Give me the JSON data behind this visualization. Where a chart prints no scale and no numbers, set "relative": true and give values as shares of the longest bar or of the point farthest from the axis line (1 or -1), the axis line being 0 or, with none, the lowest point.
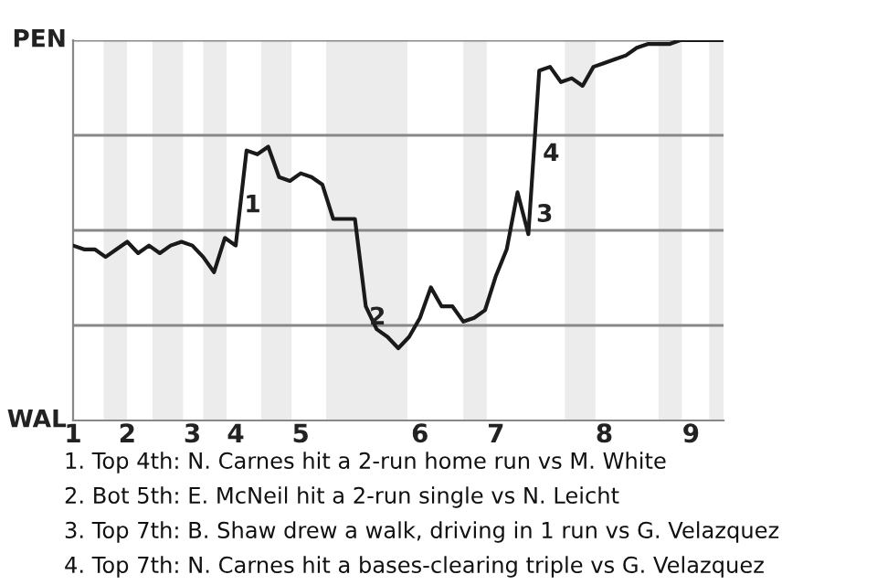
{
  "chart_data": {
    "type": "line",
    "relative": true,
    "categories": [
      "1",
      null,
      null,
      null,
      null,
      "2",
      null,
      null,
      null,
      null,
      null,
      "3",
      null,
      null,
      null,
      "4",
      null,
      null,
      null,
      null,
      null,
      "5",
      null,
      null,
      null,
      null,
      null,
      null,
      null,
      null,
      null,
      null,
      "6",
      null,
      null,
      null,
      null,
      null,
      null,
      "7",
      null,
      null,
      null,
      null,
      null,
      null,
      null,
      null,
      null,
      "8",
      null,
      null,
      null,
      null,
      null,
      null,
      null,
      "9",
      null,
      null,
      null
    ],
    "series": [
      {
        "color": "#1a1a1a",
        "values": [
          0.46,
          0.45,
          0.45,
          0.43,
          0.45,
          0.47,
          0.44,
          0.46,
          0.44,
          0.46,
          0.47,
          0.46,
          0.43,
          0.39,
          0.48,
          0.46,
          0.71,
          0.7,
          0.72,
          0.64,
          0.63,
          0.65,
          0.64,
          0.62,
          0.53,
          0.53,
          0.53,
          0.3,
          0.24,
          0.22,
          0.19,
          0.22,
          0.27,
          0.35,
          0.3,
          0.3,
          0.26,
          0.27,
          0.29,
          0.38,
          0.45,
          0.6,
          0.49,
          0.92,
          0.93,
          0.89,
          0.9,
          0.88,
          0.93,
          0.94,
          0.95,
          0.96,
          0.98,
          0.99,
          0.99,
          0.99,
          1.0,
          1.0,
          1.0,
          1.0,
          1.0
        ]
      }
    ],
    "grid": "y",
    "annotations": [
      "PEN",
      "WAL",
      "1",
      "2",
      "3",
      "4",
      "1. Top 4th: N. Carnes hit a 2-run home run vs M. White",
      "2. Bot 5th: E. McNeil hit a 2-run single vs N. Leicht",
      "3. Top 7th: B. Shaw drew a walk, driving in 1 run vs G. Velazquez",
      "4. Top 7th: N. Carnes hit a bases-clearing triple vs G. Velazquez"
    ]
  }
}
